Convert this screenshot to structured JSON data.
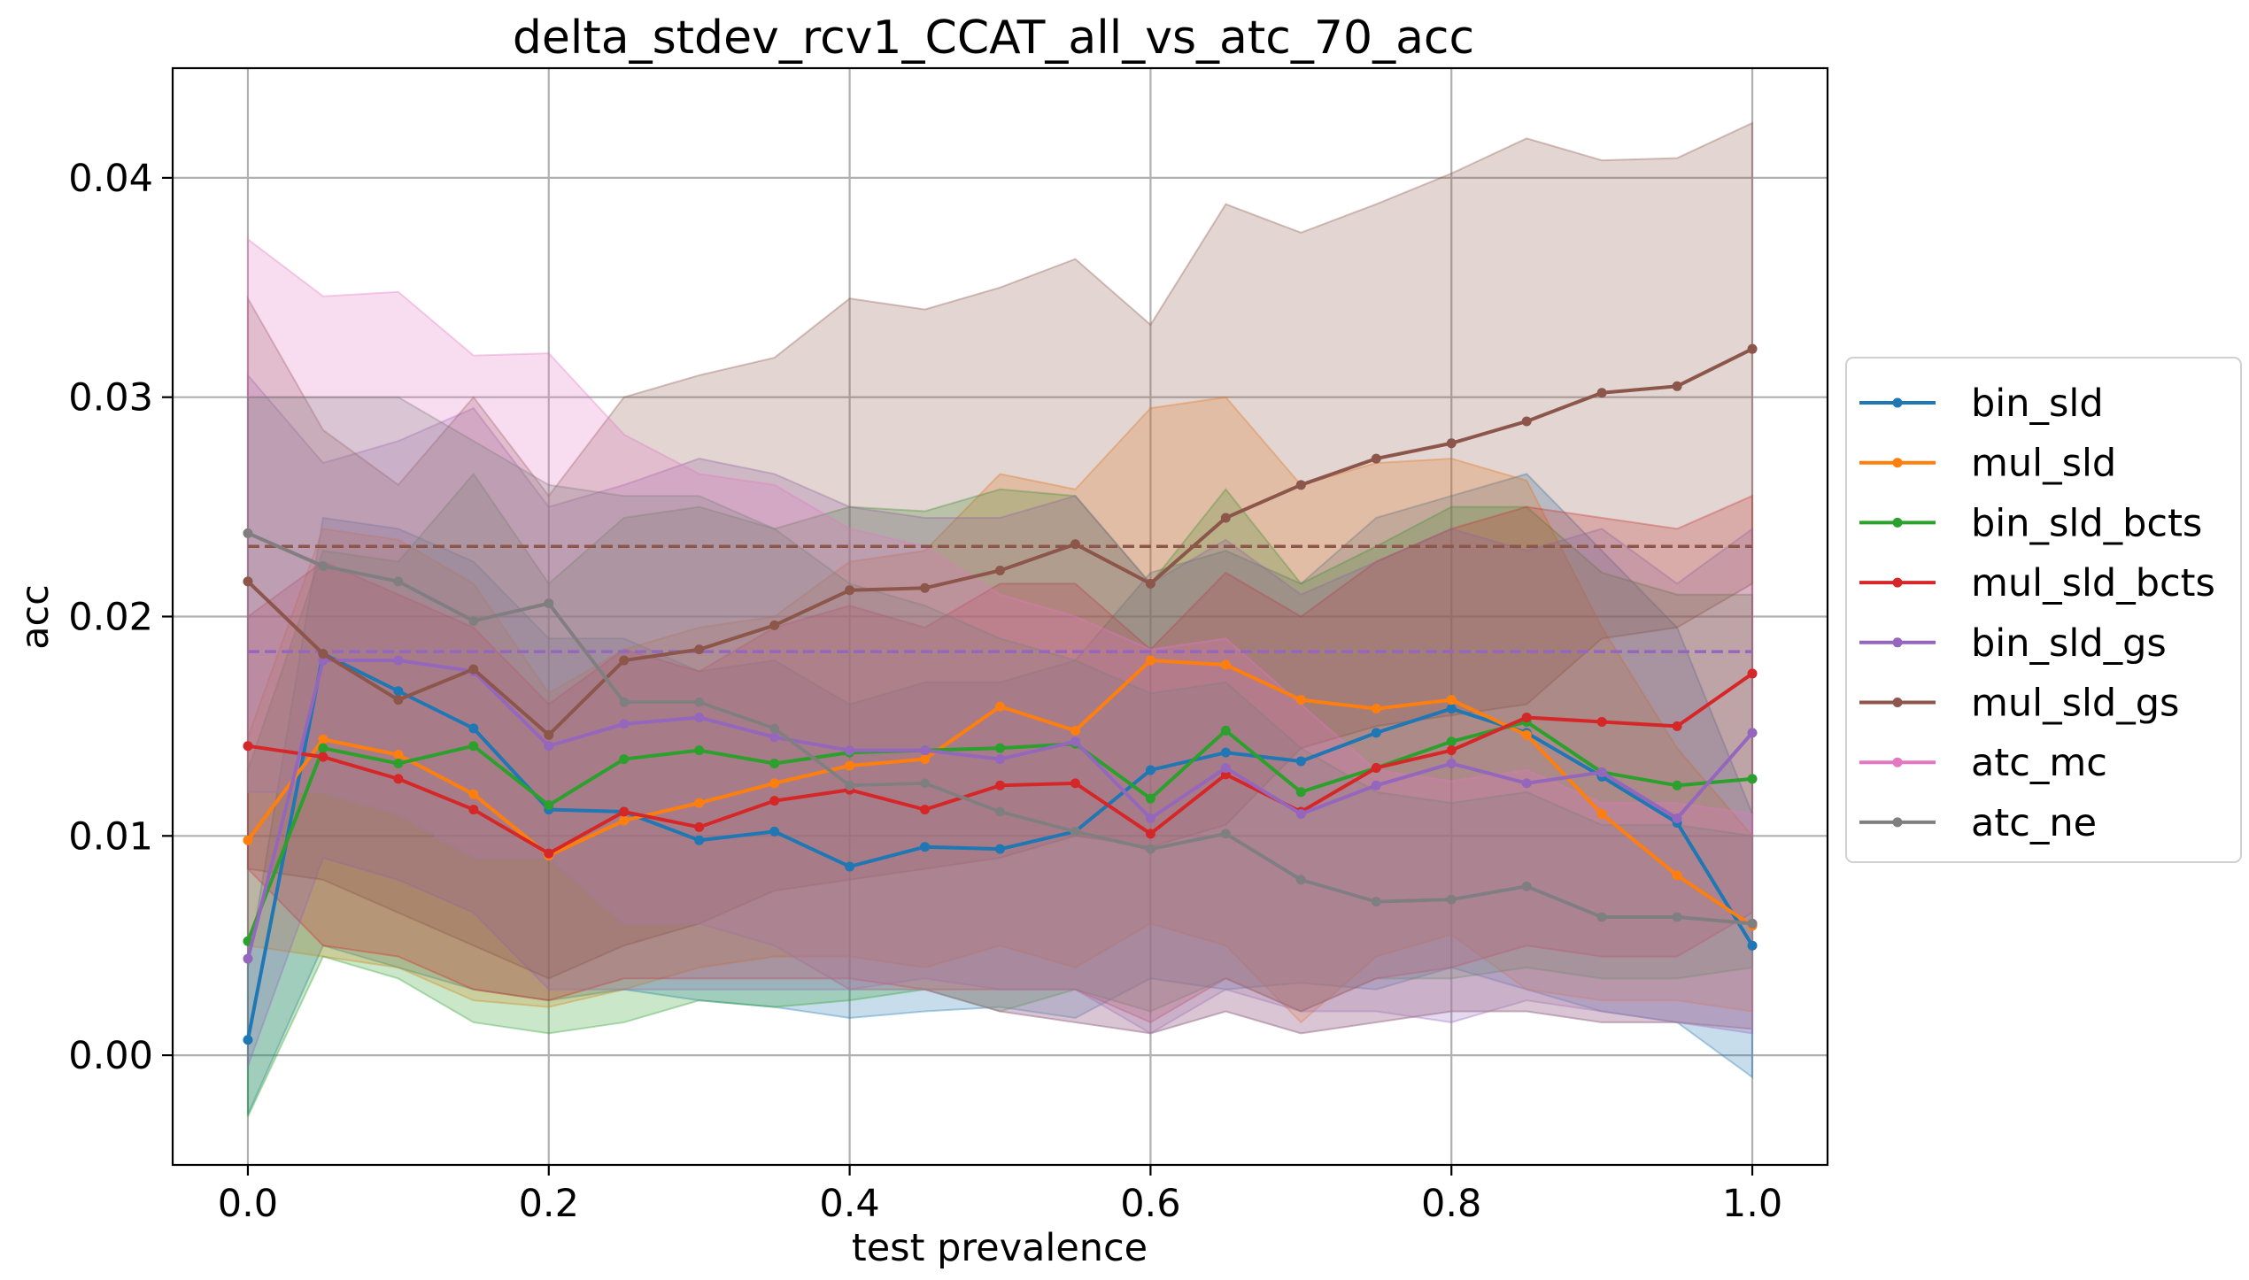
{
  "chart_data": {
    "type": "line",
    "title": "delta_stdev_rcv1_CCAT_all_vs_atc_70_acc",
    "xlabel": "test prevalence",
    "ylabel": "acc",
    "xlim": [
      -0.05,
      1.05
    ],
    "ylim": [
      -0.005,
      0.045
    ],
    "xticks": [
      "0.0",
      "0.2",
      "0.4",
      "0.6",
      "0.8",
      "1.0"
    ],
    "yticks": [
      "0.00",
      "0.01",
      "0.02",
      "0.03",
      "0.04"
    ],
    "grid": true,
    "legend": "right-center",
    "x": [
      0.0,
      0.05,
      0.1,
      0.15,
      0.2,
      0.25,
      0.3,
      0.35,
      0.4,
      0.45,
      0.5,
      0.55,
      0.6,
      0.65,
      0.7,
      0.75,
      0.8,
      0.85,
      0.9,
      0.95,
      1.0
    ],
    "series": [
      {
        "name": "bin_sld",
        "color": "#1f77b4",
        "values": [
          0.0007,
          0.0183,
          0.0166,
          0.0149,
          0.0112,
          0.0111,
          0.0098,
          0.0102,
          0.0086,
          0.0095,
          0.0094,
          0.0102,
          0.013,
          0.0138,
          0.0134,
          0.0147,
          0.0158,
          0.0147,
          0.0127,
          0.0106,
          0.005
        ],
        "lower": [
          -0.0027,
          0.005,
          0.004,
          0.003,
          0.0025,
          0.003,
          0.0025,
          0.0022,
          0.0017,
          0.002,
          0.0022,
          0.0017,
          0.0035,
          0.003,
          0.0033,
          0.003,
          0.004,
          0.003,
          0.002,
          0.0015,
          -0.001
        ],
        "upper": [
          0.004,
          0.0245,
          0.024,
          0.0225,
          0.019,
          0.019,
          0.0175,
          0.018,
          0.016,
          0.017,
          0.017,
          0.018,
          0.022,
          0.023,
          0.0215,
          0.0245,
          0.0255,
          0.0265,
          0.023,
          0.0195,
          0.011
        ]
      },
      {
        "name": "mul_sld",
        "color": "#ff7f0e",
        "values": [
          0.0098,
          0.0144,
          0.0137,
          0.0119,
          0.0091,
          0.0107,
          0.0115,
          0.0124,
          0.0132,
          0.0135,
          0.0159,
          0.0148,
          0.018,
          0.0178,
          0.0162,
          0.0158,
          0.0162,
          0.0146,
          0.011,
          0.0082,
          0.0059
        ],
        "lower": [
          0.005,
          0.0045,
          0.004,
          0.0025,
          0.0022,
          0.003,
          0.004,
          0.0045,
          0.0045,
          0.004,
          0.005,
          0.004,
          0.006,
          0.005,
          0.0015,
          0.0045,
          0.0055,
          0.003,
          0.0025,
          0.0025,
          0.002
        ],
        "upper": [
          0.0145,
          0.024,
          0.0235,
          0.0215,
          0.0165,
          0.0185,
          0.0195,
          0.02,
          0.0225,
          0.023,
          0.0265,
          0.0258,
          0.0295,
          0.03,
          0.026,
          0.027,
          0.0272,
          0.0262,
          0.0195,
          0.014,
          0.01
        ]
      },
      {
        "name": "bin_sld_bcts",
        "color": "#2ca02c",
        "values": [
          0.0052,
          0.014,
          0.0133,
          0.0141,
          0.0114,
          0.0135,
          0.0139,
          0.0133,
          0.0138,
          0.0139,
          0.014,
          0.0142,
          0.0117,
          0.0148,
          0.012,
          0.0131,
          0.0143,
          0.0152,
          0.0129,
          0.0123,
          0.0126
        ],
        "lower": [
          -0.0028,
          0.0045,
          0.0035,
          0.0015,
          0.001,
          0.0015,
          0.0025,
          0.0022,
          0.0025,
          0.003,
          0.002,
          0.003,
          0.002,
          0.0035,
          0.002,
          0.0035,
          0.0035,
          0.004,
          0.0035,
          0.0035,
          0.004
        ],
        "upper": [
          0.013,
          0.023,
          0.0225,
          0.0265,
          0.0215,
          0.0245,
          0.025,
          0.024,
          0.025,
          0.0248,
          0.0258,
          0.0255,
          0.0215,
          0.0258,
          0.0215,
          0.0232,
          0.025,
          0.025,
          0.022,
          0.021,
          0.021
        ]
      },
      {
        "name": "mul_sld_bcts",
        "color": "#d62728",
        "values": [
          0.0141,
          0.0136,
          0.0126,
          0.0112,
          0.0092,
          0.0111,
          0.0104,
          0.0116,
          0.0121,
          0.0112,
          0.0123,
          0.0124,
          0.0101,
          0.0128,
          0.0111,
          0.0131,
          0.0139,
          0.0154,
          0.0152,
          0.015,
          0.0174
        ],
        "lower": [
          0.0085,
          0.005,
          0.0045,
          0.003,
          0.0025,
          0.0035,
          0.0035,
          0.0035,
          0.0035,
          0.003,
          0.003,
          0.003,
          0.0015,
          0.0035,
          0.002,
          0.0035,
          0.004,
          0.005,
          0.0045,
          0.0045,
          0.0065
        ],
        "upper": [
          0.02,
          0.0225,
          0.021,
          0.0195,
          0.016,
          0.0185,
          0.0175,
          0.0195,
          0.0205,
          0.0195,
          0.0215,
          0.0215,
          0.0185,
          0.022,
          0.02,
          0.0225,
          0.024,
          0.025,
          0.0245,
          0.024,
          0.0255
        ]
      },
      {
        "name": "bin_sld_gs",
        "color": "#9467bd",
        "values": [
          0.0044,
          0.018,
          0.018,
          0.0175,
          0.0141,
          0.0151,
          0.0154,
          0.0145,
          0.0139,
          0.0139,
          0.0135,
          0.0143,
          0.0108,
          0.0131,
          0.011,
          0.0123,
          0.0133,
          0.0124,
          0.0129,
          0.0108,
          0.0147
        ],
        "lower": [
          -0.0005,
          0.009,
          0.008,
          0.0065,
          0.003,
          0.003,
          0.003,
          0.003,
          0.003,
          0.0035,
          0.003,
          0.003,
          0.001,
          0.003,
          0.002,
          0.002,
          0.0015,
          0.0025,
          0.002,
          0.0015,
          0.001
        ],
        "upper": [
          0.031,
          0.027,
          0.028,
          0.0295,
          0.025,
          0.026,
          0.0272,
          0.0265,
          0.025,
          0.0245,
          0.0245,
          0.0255,
          0.0215,
          0.0235,
          0.021,
          0.0225,
          0.024,
          0.023,
          0.024,
          0.0215,
          0.024
        ]
      },
      {
        "name": "mul_sld_gs",
        "color": "#8c564b",
        "values": [
          0.0216,
          0.0183,
          0.0162,
          0.0176,
          0.0146,
          0.018,
          0.0185,
          0.0196,
          0.0212,
          0.0213,
          0.0221,
          0.0233,
          0.0215,
          0.0245,
          0.026,
          0.0272,
          0.0279,
          0.0289,
          0.0302,
          0.0305,
          0.0322
        ],
        "lower": [
          0.0085,
          0.008,
          0.0065,
          0.005,
          0.0035,
          0.005,
          0.006,
          0.0075,
          0.008,
          0.0085,
          0.009,
          0.01,
          0.0095,
          0.0105,
          0.014,
          0.015,
          0.0155,
          0.016,
          0.019,
          0.0195,
          0.0215
        ],
        "upper": [
          0.0345,
          0.0285,
          0.026,
          0.03,
          0.0255,
          0.03,
          0.031,
          0.0318,
          0.0345,
          0.034,
          0.035,
          0.0363,
          0.0333,
          0.0388,
          0.0375,
          0.0388,
          0.0402,
          0.0418,
          0.0408,
          0.0409,
          0.0425
        ]
      },
      {
        "name": "atc_mc",
        "color": "#e377c2",
        "values": [
          0.0238,
          0.0223,
          0.0216,
          0.0198,
          0.0206,
          0.0161,
          0.0161,
          0.0149,
          0.0123,
          0.0124,
          0.0111,
          0.0102,
          0.0094,
          0.0101,
          0.008,
          0.007,
          0.0071,
          0.0077,
          0.0063,
          0.0063,
          0.006
        ],
        "lower": [
          0.012,
          0.012,
          0.011,
          0.009,
          0.009,
          0.006,
          0.006,
          0.005,
          0.003,
          0.003,
          0.002,
          0.0015,
          0.001,
          0.002,
          0.001,
          0.0015,
          0.002,
          0.002,
          0.0015,
          0.0015,
          0.0012
        ],
        "upper": [
          0.0372,
          0.0346,
          0.0348,
          0.0319,
          0.032,
          0.0283,
          0.0265,
          0.026,
          0.024,
          0.0232,
          0.021,
          0.02,
          0.0185,
          0.019,
          0.016,
          0.013,
          0.0125,
          0.013,
          0.0115,
          0.0115,
          0.011
        ]
      },
      {
        "name": "atc_ne",
        "color": "#7f7f7f",
        "values": [
          0.0238,
          0.0223,
          0.0216,
          0.0198,
          0.0206,
          0.0161,
          0.0161,
          0.0149,
          0.0123,
          0.0124,
          0.0111,
          0.0102,
          0.0094,
          0.0101,
          0.008,
          0.007,
          0.0071,
          0.0077,
          0.0063,
          0.0063,
          0.006
        ],
        "lower": [
          0.012,
          0.012,
          0.011,
          0.009,
          0.009,
          0.006,
          0.006,
          0.005,
          0.003,
          0.003,
          0.002,
          0.0015,
          0.001,
          0.002,
          0.001,
          0.0015,
          0.002,
          0.002,
          0.0015,
          0.0015,
          0.0012
        ],
        "upper": [
          0.03,
          0.03,
          0.03,
          0.028,
          0.026,
          0.0255,
          0.0255,
          0.024,
          0.0215,
          0.0205,
          0.019,
          0.018,
          0.0165,
          0.017,
          0.014,
          0.012,
          0.0115,
          0.012,
          0.0105,
          0.0105,
          0.01
        ]
      }
    ],
    "reference_lines": [
      {
        "series": "mul_sld_gs",
        "y": 0.0232,
        "style": "dashed",
        "color": "#8c564b"
      },
      {
        "series": "bin_sld_gs",
        "y": 0.0184,
        "style": "dashed",
        "color": "#9467bd"
      }
    ]
  }
}
